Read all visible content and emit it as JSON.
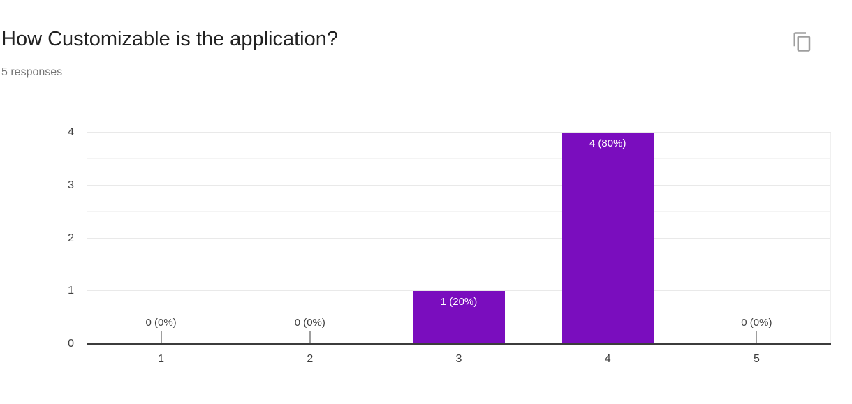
{
  "page": {
    "title": "How Customizable is the application?",
    "responses_count": "5 responses"
  },
  "toolbar": {
    "copy_button_icon": "copy-icon"
  },
  "colors": {
    "bar": "#7a0dbe",
    "title_text": "#212121",
    "subtitle_text": "#757575",
    "axis_text": "#424242",
    "annotation_text": "#404040",
    "bar_label_text": "#ffffff",
    "baseline": "#3c3c3c",
    "gridline_major": "#e9e9e9",
    "gridline_minor": "#f4f4f4",
    "plot_edge": "#f0f0f0",
    "stem": "#9e9e9e",
    "icon": "#9e9e9e"
  },
  "chart_data": {
    "type": "bar",
    "title": "How Customizable is the application?",
    "subtitle": "5 responses",
    "categories": [
      "1",
      "2",
      "3",
      "4",
      "5"
    ],
    "values": [
      0,
      0,
      1,
      4,
      0
    ],
    "bar_labels": [
      "0 (0%)",
      "0 (0%)",
      "1 (20%)",
      "4 (80%)",
      "0 (0%)"
    ],
    "xlabel": "",
    "ylabel": "",
    "ylim": [
      0,
      4
    ],
    "yticks": [
      0,
      1,
      2,
      3,
      4
    ],
    "grid": "horizontal gridlines every 0.5 units, half-unit lines lighter",
    "legend": "none",
    "bar_color": "#7a0dbe",
    "zero_value_annotation": "label above baseline with short gray stem"
  }
}
